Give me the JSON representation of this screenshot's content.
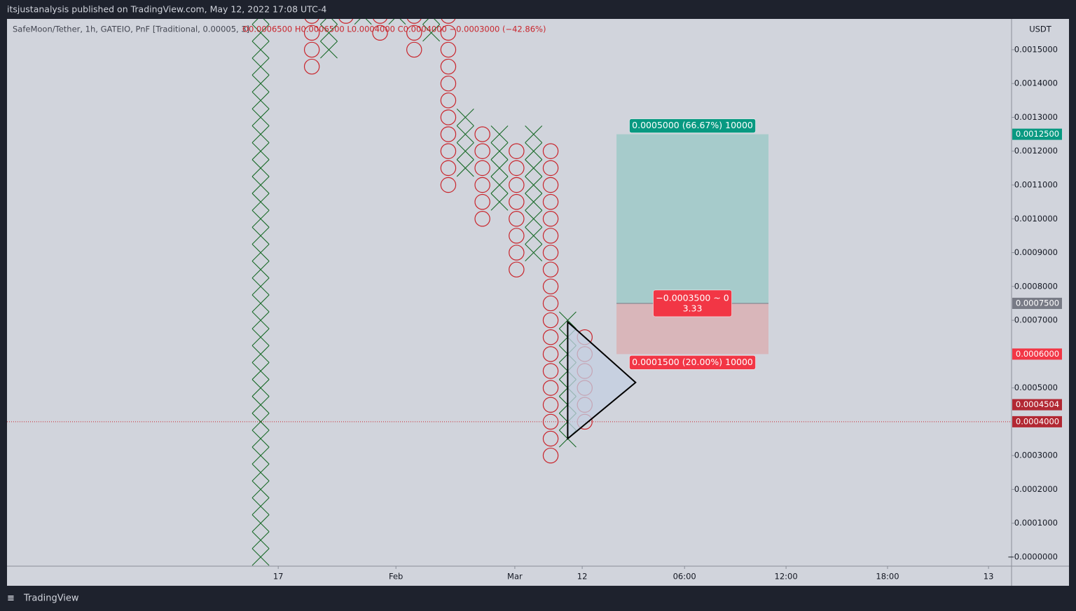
{
  "header": "itsjustanalysis published on TradingView.com, May 12, 2022 17:08 UTC-4",
  "footer": "TradingView",
  "chart_data": {
    "type": "pnf",
    "title": "SafeMoon/Tether, 1h, GATEIO, PnF [Traditional, 0.00005, 3]",
    "ohlc_legend": "O0.0006500 H0.0006500 L0.0004000 C0.0004000 −0.0003000 (−42.86%)",
    "y_axis_unit": "USDT",
    "box_size": 5e-05,
    "x_colors": {
      "X": "#1b6b2a",
      "O": "#c9252c"
    },
    "columns": [
      {
        "x": 0,
        "kind": "X",
        "low": 0,
        "high": 0.0016
      },
      {
        "x": 3,
        "kind": "O",
        "low": 0.00145,
        "high": 0.0016
      },
      {
        "x": 4,
        "kind": "X",
        "low": 0.0015,
        "high": 0.0016
      },
      {
        "x": 5,
        "kind": "O",
        "low": 0.0016,
        "high": 0.00165
      },
      {
        "x": 6,
        "kind": "X",
        "low": 0.0016,
        "high": 0.00165
      },
      {
        "x": 7,
        "kind": "O",
        "low": 0.00155,
        "high": 0.00165
      },
      {
        "x": 8,
        "kind": "X",
        "low": 0.0016,
        "high": 0.00165
      },
      {
        "x": 9,
        "kind": "O",
        "low": 0.0015,
        "high": 0.00165
      },
      {
        "x": 10,
        "kind": "X",
        "low": 0.00155,
        "high": 0.0016
      },
      {
        "x": 11,
        "kind": "O",
        "low": 0.0011,
        "high": 0.0016
      },
      {
        "x": 12,
        "kind": "X",
        "low": 0.00115,
        "high": 0.0013
      },
      {
        "x": 13,
        "kind": "O",
        "low": 0.001,
        "high": 0.00125
      },
      {
        "x": 14,
        "kind": "X",
        "low": 0.00105,
        "high": 0.00125
      },
      {
        "x": 15,
        "kind": "O",
        "low": 0.00085,
        "high": 0.0012
      },
      {
        "x": 16,
        "kind": "X",
        "low": 0.0009,
        "high": 0.00125
      },
      {
        "x": 17,
        "kind": "O",
        "low": 0.0003,
        "high": 0.0012
      },
      {
        "x": 18,
        "kind": "X",
        "low": 0.00035,
        "high": 0.0007
      },
      {
        "x": 19,
        "kind": "O",
        "low": 0.0004,
        "high": 0.00065
      }
    ],
    "xlim": [
      -14.87,
      44.02
    ],
    "xticks": [
      {
        "value": 1.03,
        "label": "17"
      },
      {
        "value": 7.93,
        "label": "Feb"
      },
      {
        "value": 14.9,
        "label": "Mar"
      },
      {
        "value": 18.85,
        "label": "12"
      },
      {
        "value": 24.85,
        "label": "06:00"
      },
      {
        "value": 30.8,
        "label": "12:00"
      },
      {
        "value": 36.75,
        "label": "18:00"
      },
      {
        "value": 42.67,
        "label": "13"
      }
    ],
    "ylim": [
      -2.7e-05,
      0.001591
    ],
    "yticks": [
      {
        "value": 0.0015,
        "label": "0.0015000"
      },
      {
        "value": 0.0014,
        "label": "0.0014000"
      },
      {
        "value": 0.0013,
        "label": "0.0013000"
      },
      {
        "value": 0.0012,
        "label": "0.0012000"
      },
      {
        "value": 0.0011,
        "label": "0.0011000"
      },
      {
        "value": 0.001,
        "label": "0.0010000"
      },
      {
        "value": 0.0009,
        "label": "0.0009000"
      },
      {
        "value": 0.0008,
        "label": "0.0008000"
      },
      {
        "value": 0.0007,
        "label": "0.0007000"
      },
      {
        "value": 0.0005,
        "label": "0.0005000"
      },
      {
        "value": 0.0003,
        "label": "0.0003000"
      },
      {
        "value": 0.0002,
        "label": "0.0002000"
      },
      {
        "value": 0.0001,
        "label": "0.0001000"
      },
      {
        "value": 0,
        "label": "−0.0000000"
      }
    ],
    "price_labels": [
      {
        "value": 0.00125,
        "label": "0.0012500",
        "color": "#089981"
      },
      {
        "value": 0.00075,
        "label": "0.0007500",
        "color": "#787b86"
      },
      {
        "value": 0.0006,
        "label": "0.0006000",
        "color": "#f23645"
      },
      {
        "value": 0.0004504,
        "label": "0.0004504",
        "color": "#b22833"
      },
      {
        "value": 0.0004,
        "label": "0.0004000",
        "color": "#b22833"
      }
    ],
    "last_price": 0.0004,
    "position": {
      "x_start": 20.86,
      "x_end": 29.77,
      "entry": 0.00075,
      "target": 0.00125,
      "stop": 0.0006,
      "target_label": "0.0005000 (66.67%) 10000",
      "entry_label": "−0.0003500 ~ 0",
      "ratio_label": "3.33",
      "stop_label": "0.0001500 (20.00%) 10000",
      "profit_color": "#a6cbcb",
      "loss_color": "#d9b6ba"
    },
    "triangle": {
      "x": [
        18,
        21.98,
        18
      ],
      "y": [
        0.000695,
        0.000516,
        0.00035
      ],
      "color": "#c3cfe2"
    }
  }
}
